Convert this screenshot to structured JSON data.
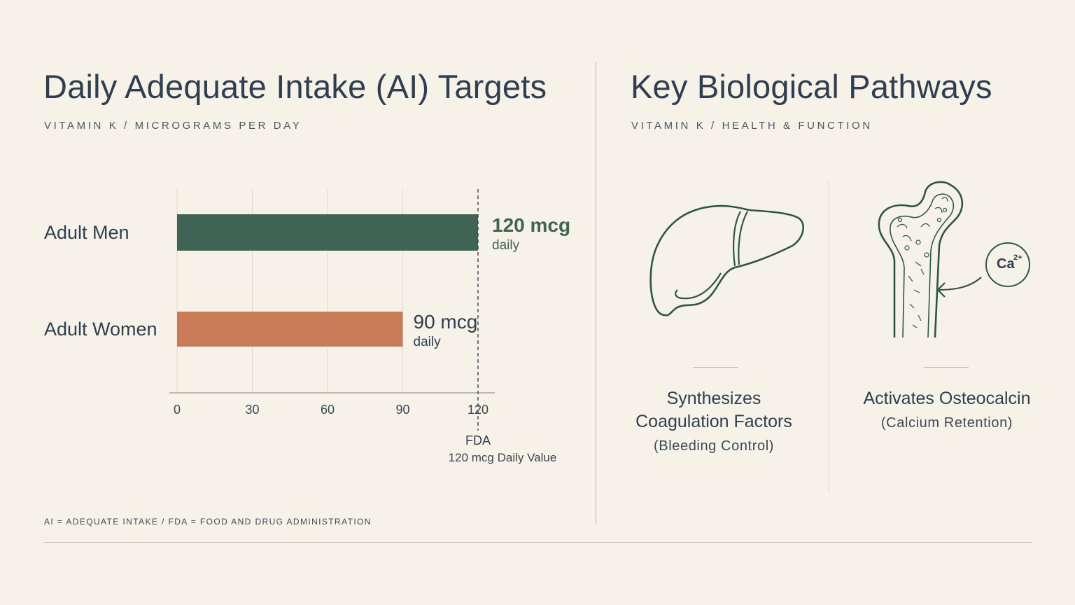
{
  "left": {
    "title": "Daily Adequate Intake (AI) Targets",
    "subtitle": "VITAMIN K   /   MICROGRAMS PER DAY"
  },
  "right": {
    "title": "Key Biological Pathways",
    "subtitle": "VITAMIN K   /   HEALTH & FUNCTION",
    "cards": [
      {
        "title_line1": "Synthesizes",
        "title_line2": "Coagulation Factors",
        "sub": "(Bleeding Control)",
        "icon": "liver-icon"
      },
      {
        "title_line1": "Activates Osteocalcin",
        "sub": "(Calcium Retention)",
        "icon": "bone-icon",
        "badge": "Ca",
        "badge_sup": "2+"
      }
    ]
  },
  "chart_data": {
    "type": "bar",
    "orientation": "horizontal",
    "categories": [
      "Adult Men",
      "Adult Women"
    ],
    "values": [
      120,
      90
    ],
    "value_labels": [
      "120 mcg",
      "90 mcg"
    ],
    "value_sublabels": [
      "daily",
      "daily"
    ],
    "xlim": [
      0,
      120
    ],
    "xticks": [
      0,
      30,
      60,
      90,
      120
    ],
    "grid": true,
    "reference_line": {
      "value": 120,
      "label": "FDA",
      "sublabel": "120 mcg Daily Value"
    },
    "colors": [
      "#3f6354",
      "#c97a57"
    ]
  },
  "footnote": "AI = ADEQUATE INTAKE    /    FDA = FOOD AND DRUG ADMINISTRATION",
  "colors": {
    "background": "#f7f2e7",
    "ink": "#2f3e50",
    "green": "#3f6354",
    "terracotta": "#c97a57"
  }
}
